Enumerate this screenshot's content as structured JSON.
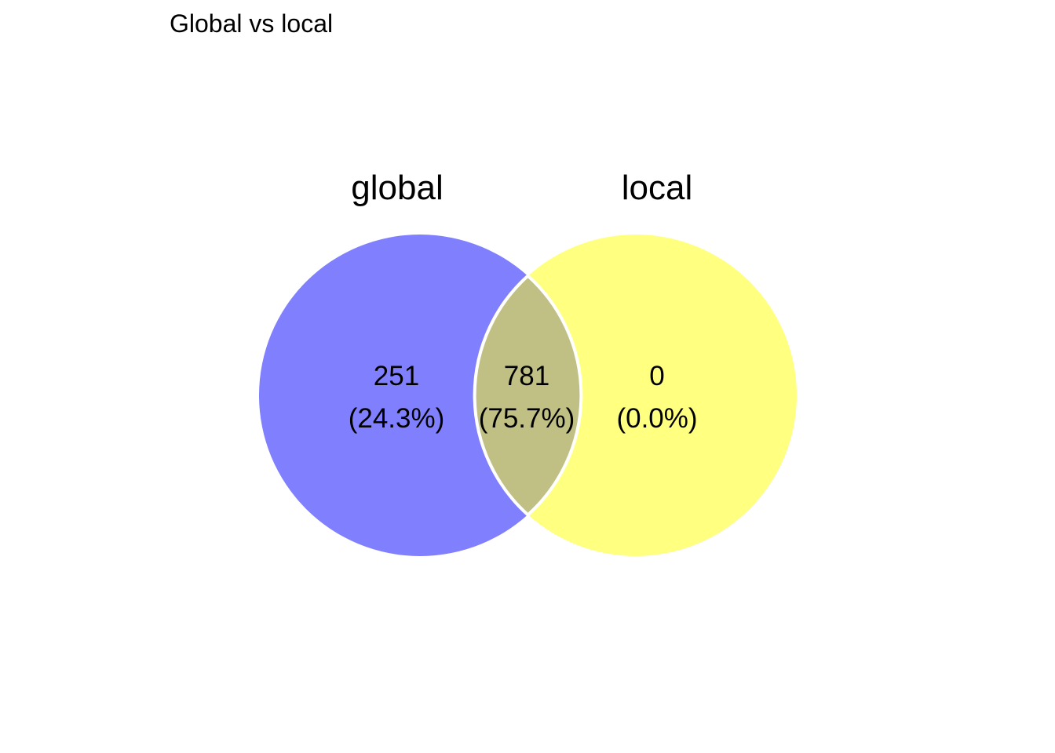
{
  "title": "Global vs local",
  "sets": [
    {
      "label": "global",
      "color": "#8080ff"
    },
    {
      "label": "local",
      "color": "#ffff80"
    }
  ],
  "intersection_color": "#c0c084",
  "border_color": "#ffffff",
  "regions": {
    "global_only": {
      "count": "251",
      "percent": "(24.3%)"
    },
    "both": {
      "count": "781",
      "percent": "(75.7%)"
    },
    "local_only": {
      "count": "0",
      "percent": "(0.0%)"
    }
  }
}
